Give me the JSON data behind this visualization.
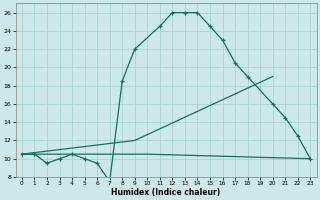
{
  "line1_x": [
    0,
    1,
    2,
    3,
    4,
    5,
    6,
    7,
    8,
    9,
    11,
    12,
    13,
    14,
    15,
    16,
    17,
    18,
    20,
    21,
    22,
    23
  ],
  "line1_y": [
    10.5,
    10.5,
    9.5,
    10.0,
    10.5,
    10.0,
    9.5,
    7.5,
    18.5,
    22.0,
    24.5,
    26.0,
    26.0,
    26.0,
    24.5,
    23.0,
    20.5,
    19.0,
    16.0,
    14.5,
    12.5,
    10.0
  ],
  "line2_x": [
    0,
    10,
    23
  ],
  "line2_y": [
    10.5,
    10.5,
    10.0
  ],
  "line3_x": [
    0,
    9,
    20
  ],
  "line3_y": [
    10.5,
    12.0,
    19.0
  ],
  "line_color": "#1a6e5e",
  "bg_color": "#cce8e8",
  "grid_color": "#aad4d4",
  "xlabel": "Humidex (Indice chaleur)",
  "xlim": [
    -0.5,
    23.5
  ],
  "ylim": [
    8,
    27
  ],
  "yticks": [
    8,
    10,
    12,
    14,
    16,
    18,
    20,
    22,
    24,
    26
  ],
  "xticks": [
    0,
    1,
    2,
    3,
    4,
    5,
    6,
    7,
    8,
    9,
    10,
    11,
    12,
    13,
    14,
    15,
    16,
    17,
    18,
    19,
    20,
    21,
    22,
    23
  ]
}
